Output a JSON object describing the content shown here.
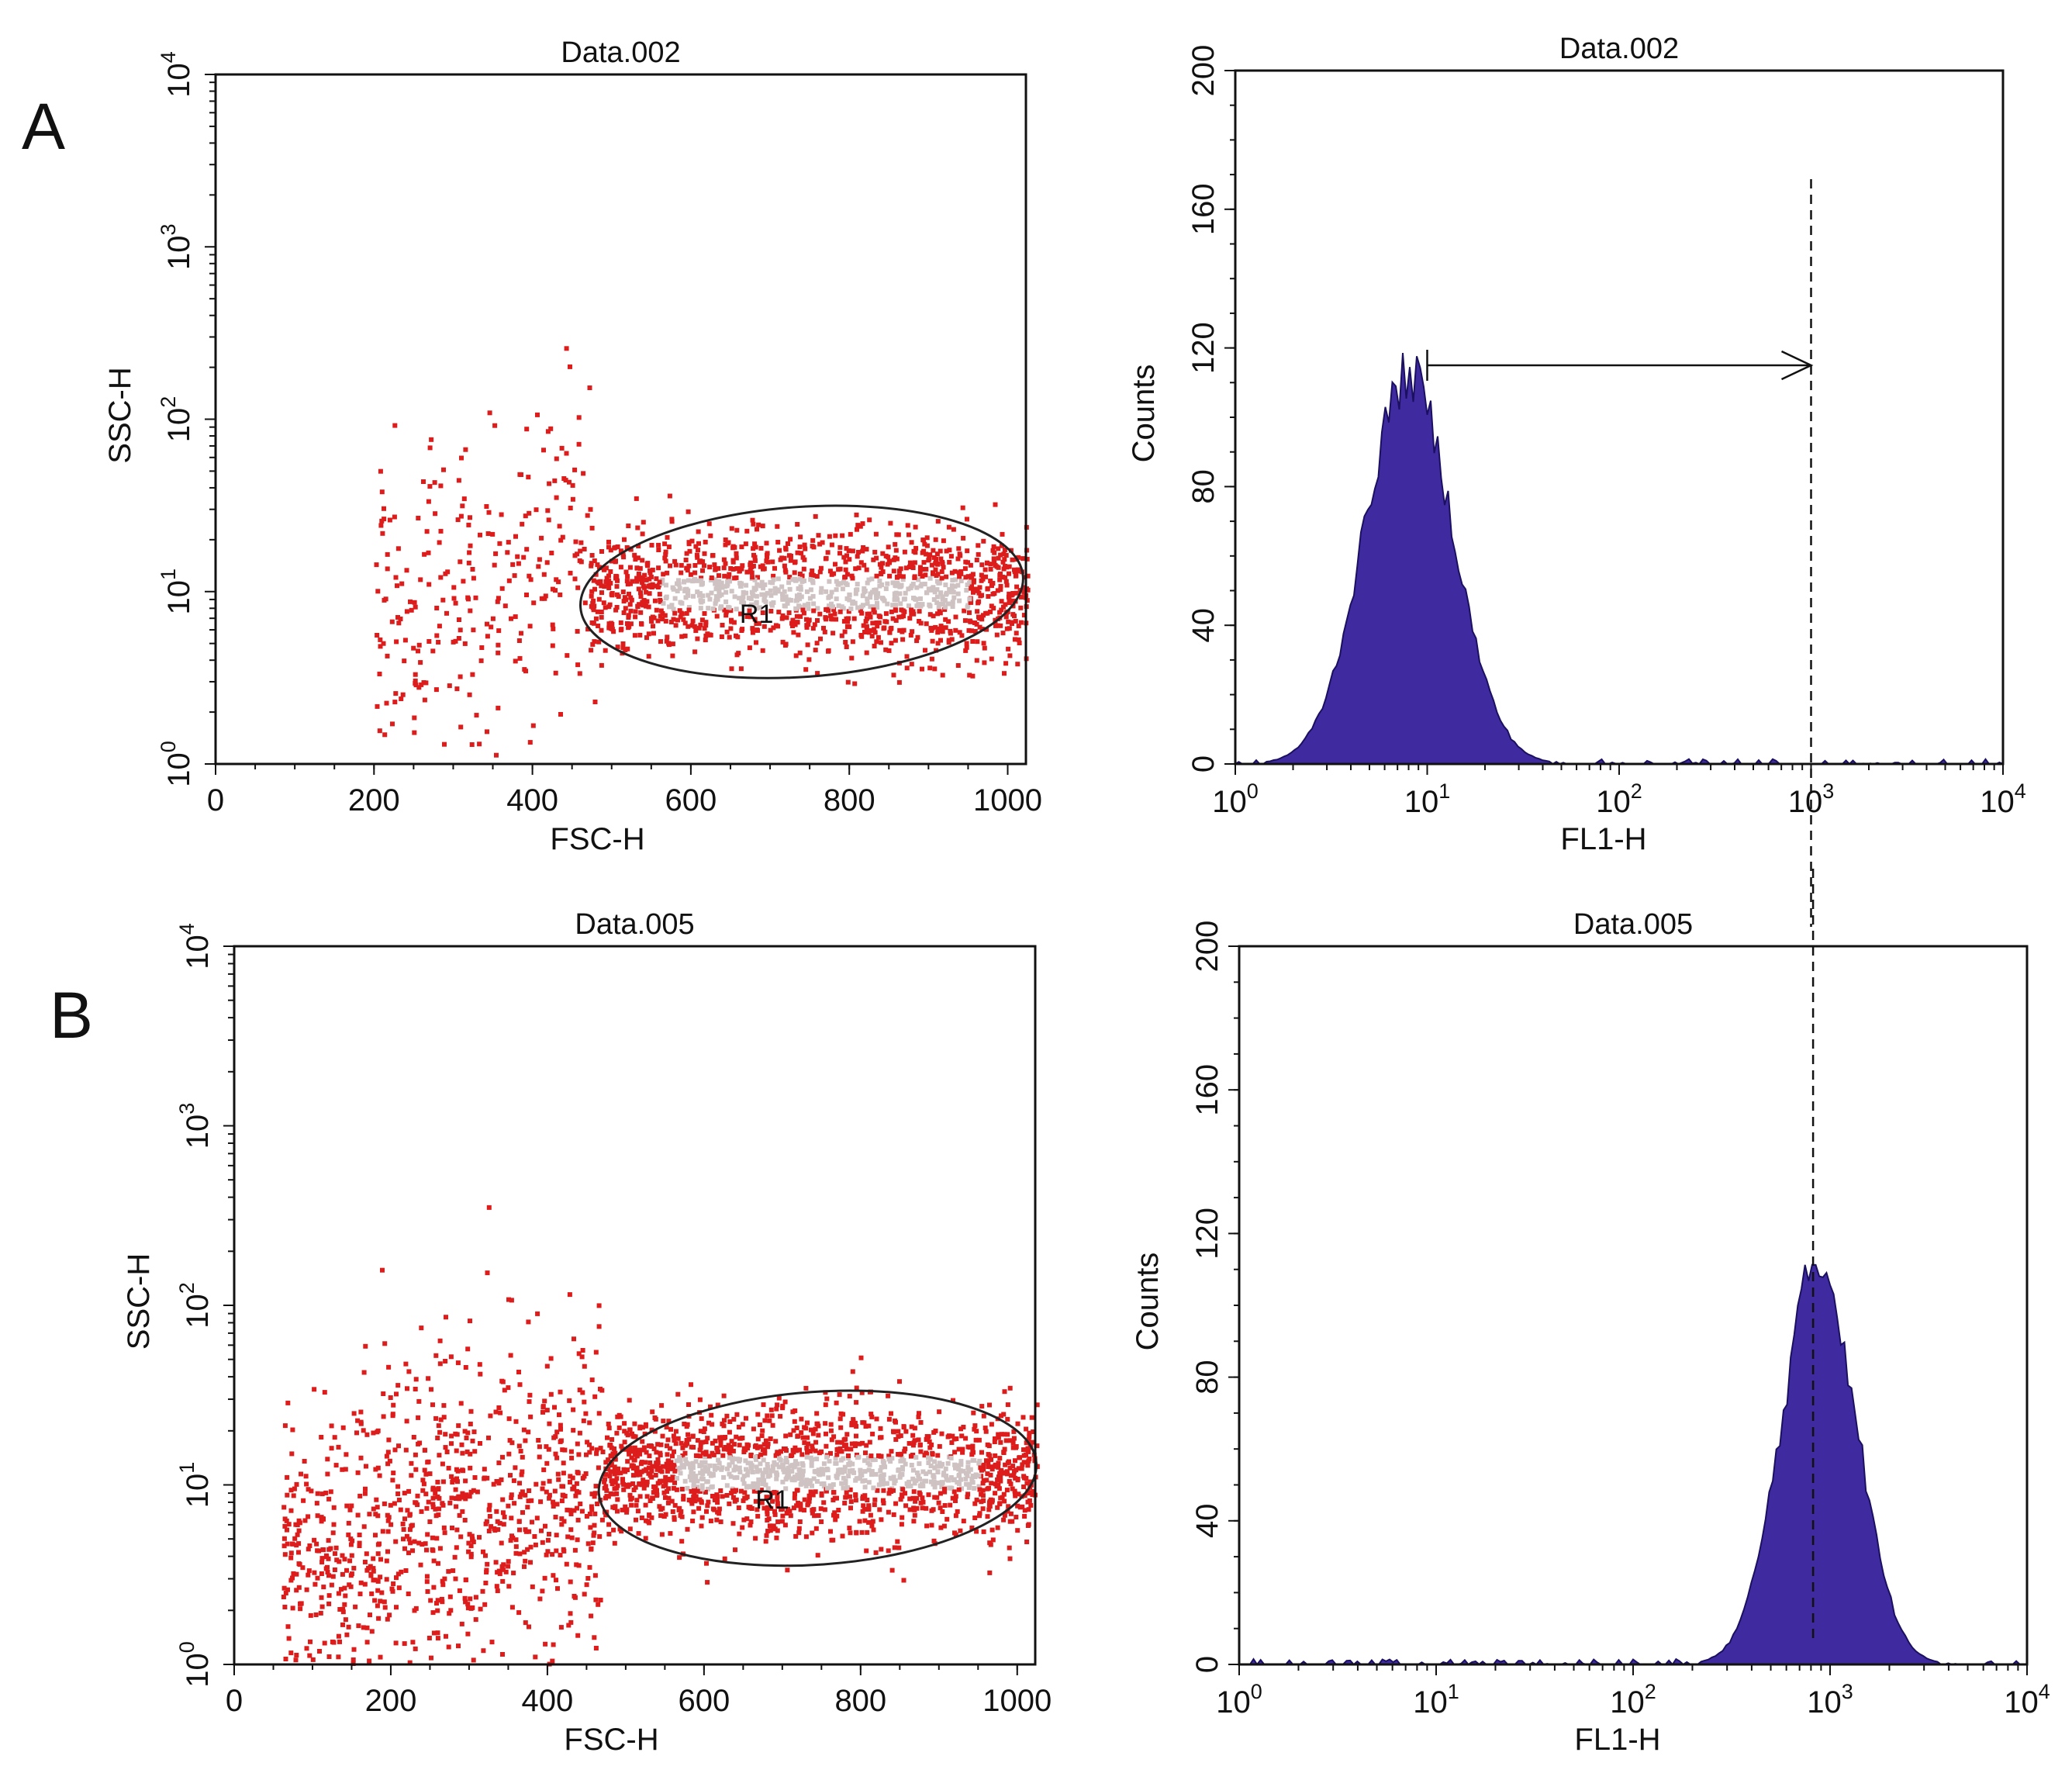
{
  "figure": {
    "panel_labels": [
      "A",
      "B"
    ],
    "colors": {
      "scatter_outer": "#dd1c1c",
      "scatter_core": "#cfc2c2",
      "histogram_fill": "#3f2aa0",
      "line": "#111111"
    }
  },
  "chart_data": [
    {
      "id": "A-scatter",
      "type": "scatter",
      "panel": "A",
      "title": "Data.002",
      "xlabel": "FSC-H",
      "ylabel": "SSC-H",
      "xlim": [
        0,
        1023
      ],
      "ylim": [
        1,
        10000
      ],
      "yscale": "log",
      "xticks": [
        "0",
        "200",
        "400",
        "600",
        "800",
        "1000"
      ],
      "yticks": [
        {
          "base": "10",
          "exp": "0"
        },
        {
          "base": "10",
          "exp": "1"
        },
        {
          "base": "10",
          "exp": "2"
        },
        {
          "base": "10",
          "exp": "3"
        },
        {
          "base": "10",
          "exp": "4"
        }
      ],
      "gate": {
        "name": "R1",
        "center_fsc": 740,
        "center_ssc": 10,
        "fsc_halfwidth": 280,
        "ssc_low": 3.2,
        "ssc_high": 31
      },
      "clusters": [
        {
          "name": "main",
          "fsc_min": 470,
          "fsc_max": 1023,
          "ssc_center": 10,
          "ssc_spread_decades": 0.18,
          "count": 1400
        },
        {
          "name": "debris",
          "fsc_min": 200,
          "fsc_max": 470,
          "ssc_center": 10,
          "ssc_spread_decades": 0.45,
          "count": 260
        }
      ]
    },
    {
      "id": "A-hist",
      "type": "area",
      "panel": "A",
      "title": "Data.002",
      "xlabel": "FL1-H",
      "ylabel": "Counts",
      "xlim": [
        1,
        10000
      ],
      "xscale": "log",
      "ylim": [
        0,
        200
      ],
      "xticks": [
        {
          "base": "10",
          "exp": "0"
        },
        {
          "base": "10",
          "exp": "1"
        },
        {
          "base": "10",
          "exp": "2"
        },
        {
          "base": "10",
          "exp": "3"
        },
        {
          "base": "10",
          "exp": "4"
        }
      ],
      "yticks": [
        "0",
        "40",
        "80",
        "120",
        "160",
        "200"
      ],
      "peak_fl1": 8,
      "peak_counts": 112,
      "width_decades": 0.23,
      "marker_fl1": 1000,
      "arrow": {
        "from_fl1": 10,
        "to_fl1": 1000,
        "counts": 115
      }
    },
    {
      "id": "B-scatter",
      "type": "scatter",
      "panel": "B",
      "title": "Data.005",
      "xlabel": "FSC-H",
      "ylabel": "SSC-H",
      "xlim": [
        0,
        1023
      ],
      "ylim": [
        1,
        10000
      ],
      "yscale": "log",
      "xticks": [
        "0",
        "200",
        "400",
        "600",
        "800",
        "1000"
      ],
      "yticks": [
        {
          "base": "10",
          "exp": "0"
        },
        {
          "base": "10",
          "exp": "1"
        },
        {
          "base": "10",
          "exp": "2"
        },
        {
          "base": "10",
          "exp": "3"
        },
        {
          "base": "10",
          "exp": "4"
        }
      ],
      "gate": {
        "name": "R1",
        "center_fsc": 745,
        "center_ssc": 11,
        "fsc_halfwidth": 280,
        "ssc_low": 3.6,
        "ssc_high": 33
      },
      "clusters": [
        {
          "name": "main",
          "fsc_min": 470,
          "fsc_max": 1023,
          "ssc_center": 12,
          "ssc_spread_decades": 0.18,
          "count": 1600
        },
        {
          "name": "debris",
          "fsc_min": 60,
          "fsc_max": 470,
          "ssc_center": 5,
          "ssc_spread_decades": 0.45,
          "count": 900
        }
      ]
    },
    {
      "id": "B-hist",
      "type": "area",
      "panel": "B",
      "title": "Data.005",
      "xlabel": "FL1-H",
      "ylabel": "Counts",
      "xlim": [
        1,
        10000
      ],
      "xscale": "log",
      "ylim": [
        0,
        200
      ],
      "xticks": [
        {
          "base": "10",
          "exp": "0"
        },
        {
          "base": "10",
          "exp": "1"
        },
        {
          "base": "10",
          "exp": "2"
        },
        {
          "base": "10",
          "exp": "3"
        },
        {
          "base": "10",
          "exp": "4"
        }
      ],
      "yticks": [
        "0",
        "40",
        "80",
        "120",
        "160",
        "200"
      ],
      "peak_fl1": 880,
      "peak_counts": 112,
      "width_decades": 0.19,
      "marker_fl1": 820
    }
  ]
}
